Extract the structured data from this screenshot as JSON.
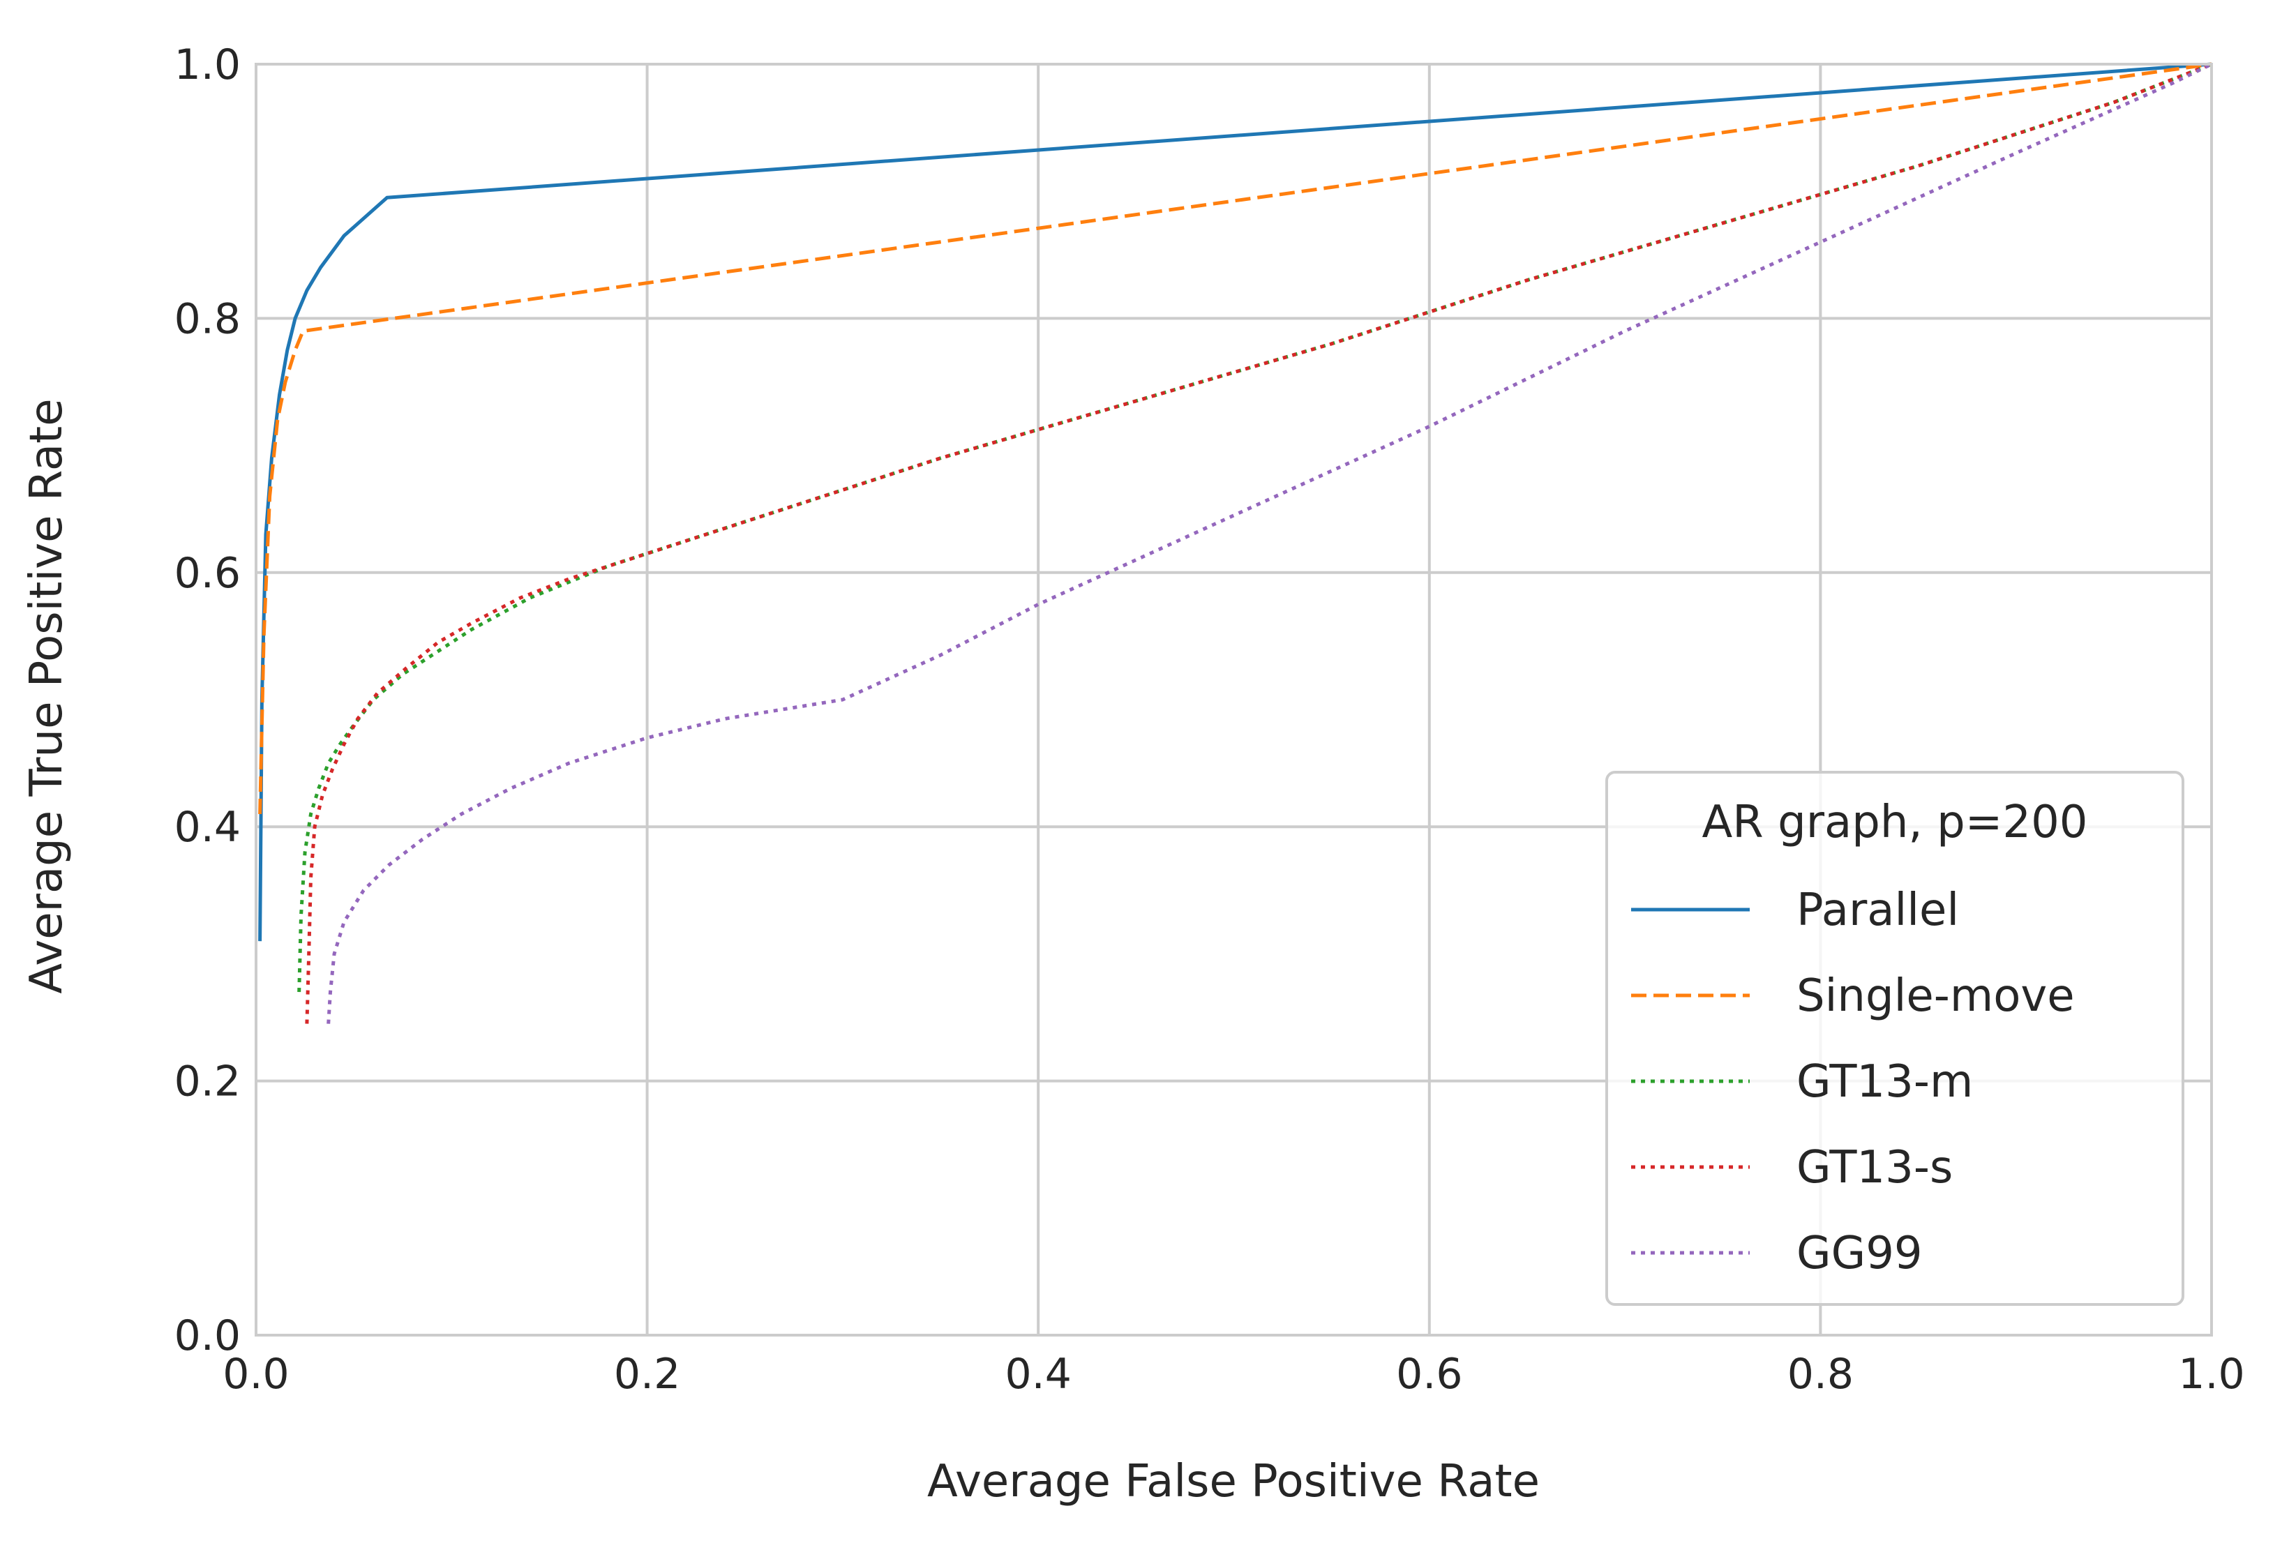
{
  "chart_data": {
    "type": "line",
    "title": "",
    "xlabel": "Average False Positive Rate",
    "ylabel": "Average True Positive Rate",
    "xlim": [
      0.0,
      1.0
    ],
    "ylim": [
      0.0,
      1.0
    ],
    "xticks": [
      "0.0",
      "0.2",
      "0.4",
      "0.6",
      "0.8",
      "1.0"
    ],
    "yticks": [
      "0.0",
      "0.2",
      "0.4",
      "0.6",
      "0.8",
      "1.0"
    ],
    "grid": true,
    "legend": {
      "title": "AR graph, p=200",
      "location": "lower-right"
    },
    "series": [
      {
        "name": "Parallel",
        "color": "#1f77b4",
        "style": "solid",
        "x": [
          0.002,
          0.003,
          0.005,
          0.008,
          0.012,
          0.016,
          0.02,
          0.026,
          0.033,
          0.045,
          0.067,
          1.0
        ],
        "y": [
          0.31,
          0.5,
          0.63,
          0.69,
          0.74,
          0.775,
          0.8,
          0.822,
          0.84,
          0.865,
          0.895,
          1.0
        ]
      },
      {
        "name": "Single-move",
        "color": "#ff7f0e",
        "style": "dashed",
        "x": [
          0.002,
          0.004,
          0.007,
          0.011,
          0.015,
          0.02,
          0.024,
          1.0
        ],
        "y": [
          0.41,
          0.55,
          0.66,
          0.72,
          0.75,
          0.775,
          0.79,
          1.0
        ]
      },
      {
        "name": "GT13-m",
        "color": "#2ca02c",
        "style": "dotted",
        "x": [
          0.022,
          0.023,
          0.025,
          0.028,
          0.032,
          0.037,
          0.043,
          0.05,
          0.06,
          0.075,
          0.09,
          0.11,
          0.14,
          0.18,
          0.25,
          0.35,
          0.45,
          0.55,
          0.65,
          0.75,
          0.85,
          0.95,
          1.0
        ],
        "y": [
          0.27,
          0.33,
          0.38,
          0.41,
          0.43,
          0.45,
          0.465,
          0.48,
          0.5,
          0.52,
          0.535,
          0.555,
          0.58,
          0.605,
          0.64,
          0.69,
          0.735,
          0.78,
          0.83,
          0.875,
          0.92,
          0.97,
          1.0
        ]
      },
      {
        "name": "GT13-s",
        "color": "#d62728",
        "style": "dotted",
        "x": [
          0.026,
          0.027,
          0.028,
          0.03,
          0.034,
          0.039,
          0.045,
          0.052,
          0.062,
          0.077,
          0.093,
          0.11,
          0.135,
          0.16,
          0.2,
          0.25,
          0.35,
          0.45,
          0.55,
          0.65,
          0.75,
          0.85,
          0.95,
          1.0
        ],
        "y": [
          0.245,
          0.3,
          0.36,
          0.4,
          0.425,
          0.445,
          0.465,
          0.485,
          0.505,
          0.525,
          0.545,
          0.56,
          0.58,
          0.595,
          0.615,
          0.64,
          0.69,
          0.735,
          0.78,
          0.83,
          0.875,
          0.92,
          0.97,
          1.0
        ]
      },
      {
        "name": "GG99",
        "color": "#9467bd",
        "style": "dotted",
        "x": [
          0.037,
          0.038,
          0.04,
          0.045,
          0.055,
          0.068,
          0.085,
          0.105,
          0.13,
          0.16,
          0.2,
          0.24,
          0.28,
          0.3,
          0.35,
          0.4,
          0.5,
          0.6,
          0.7,
          0.8,
          0.9,
          0.98,
          1.0
        ],
        "y": [
          0.245,
          0.27,
          0.3,
          0.325,
          0.35,
          0.37,
          0.39,
          0.41,
          0.43,
          0.45,
          0.47,
          0.485,
          0.495,
          0.5,
          0.535,
          0.575,
          0.645,
          0.715,
          0.79,
          0.86,
          0.93,
          0.985,
          1.0
        ]
      }
    ]
  }
}
